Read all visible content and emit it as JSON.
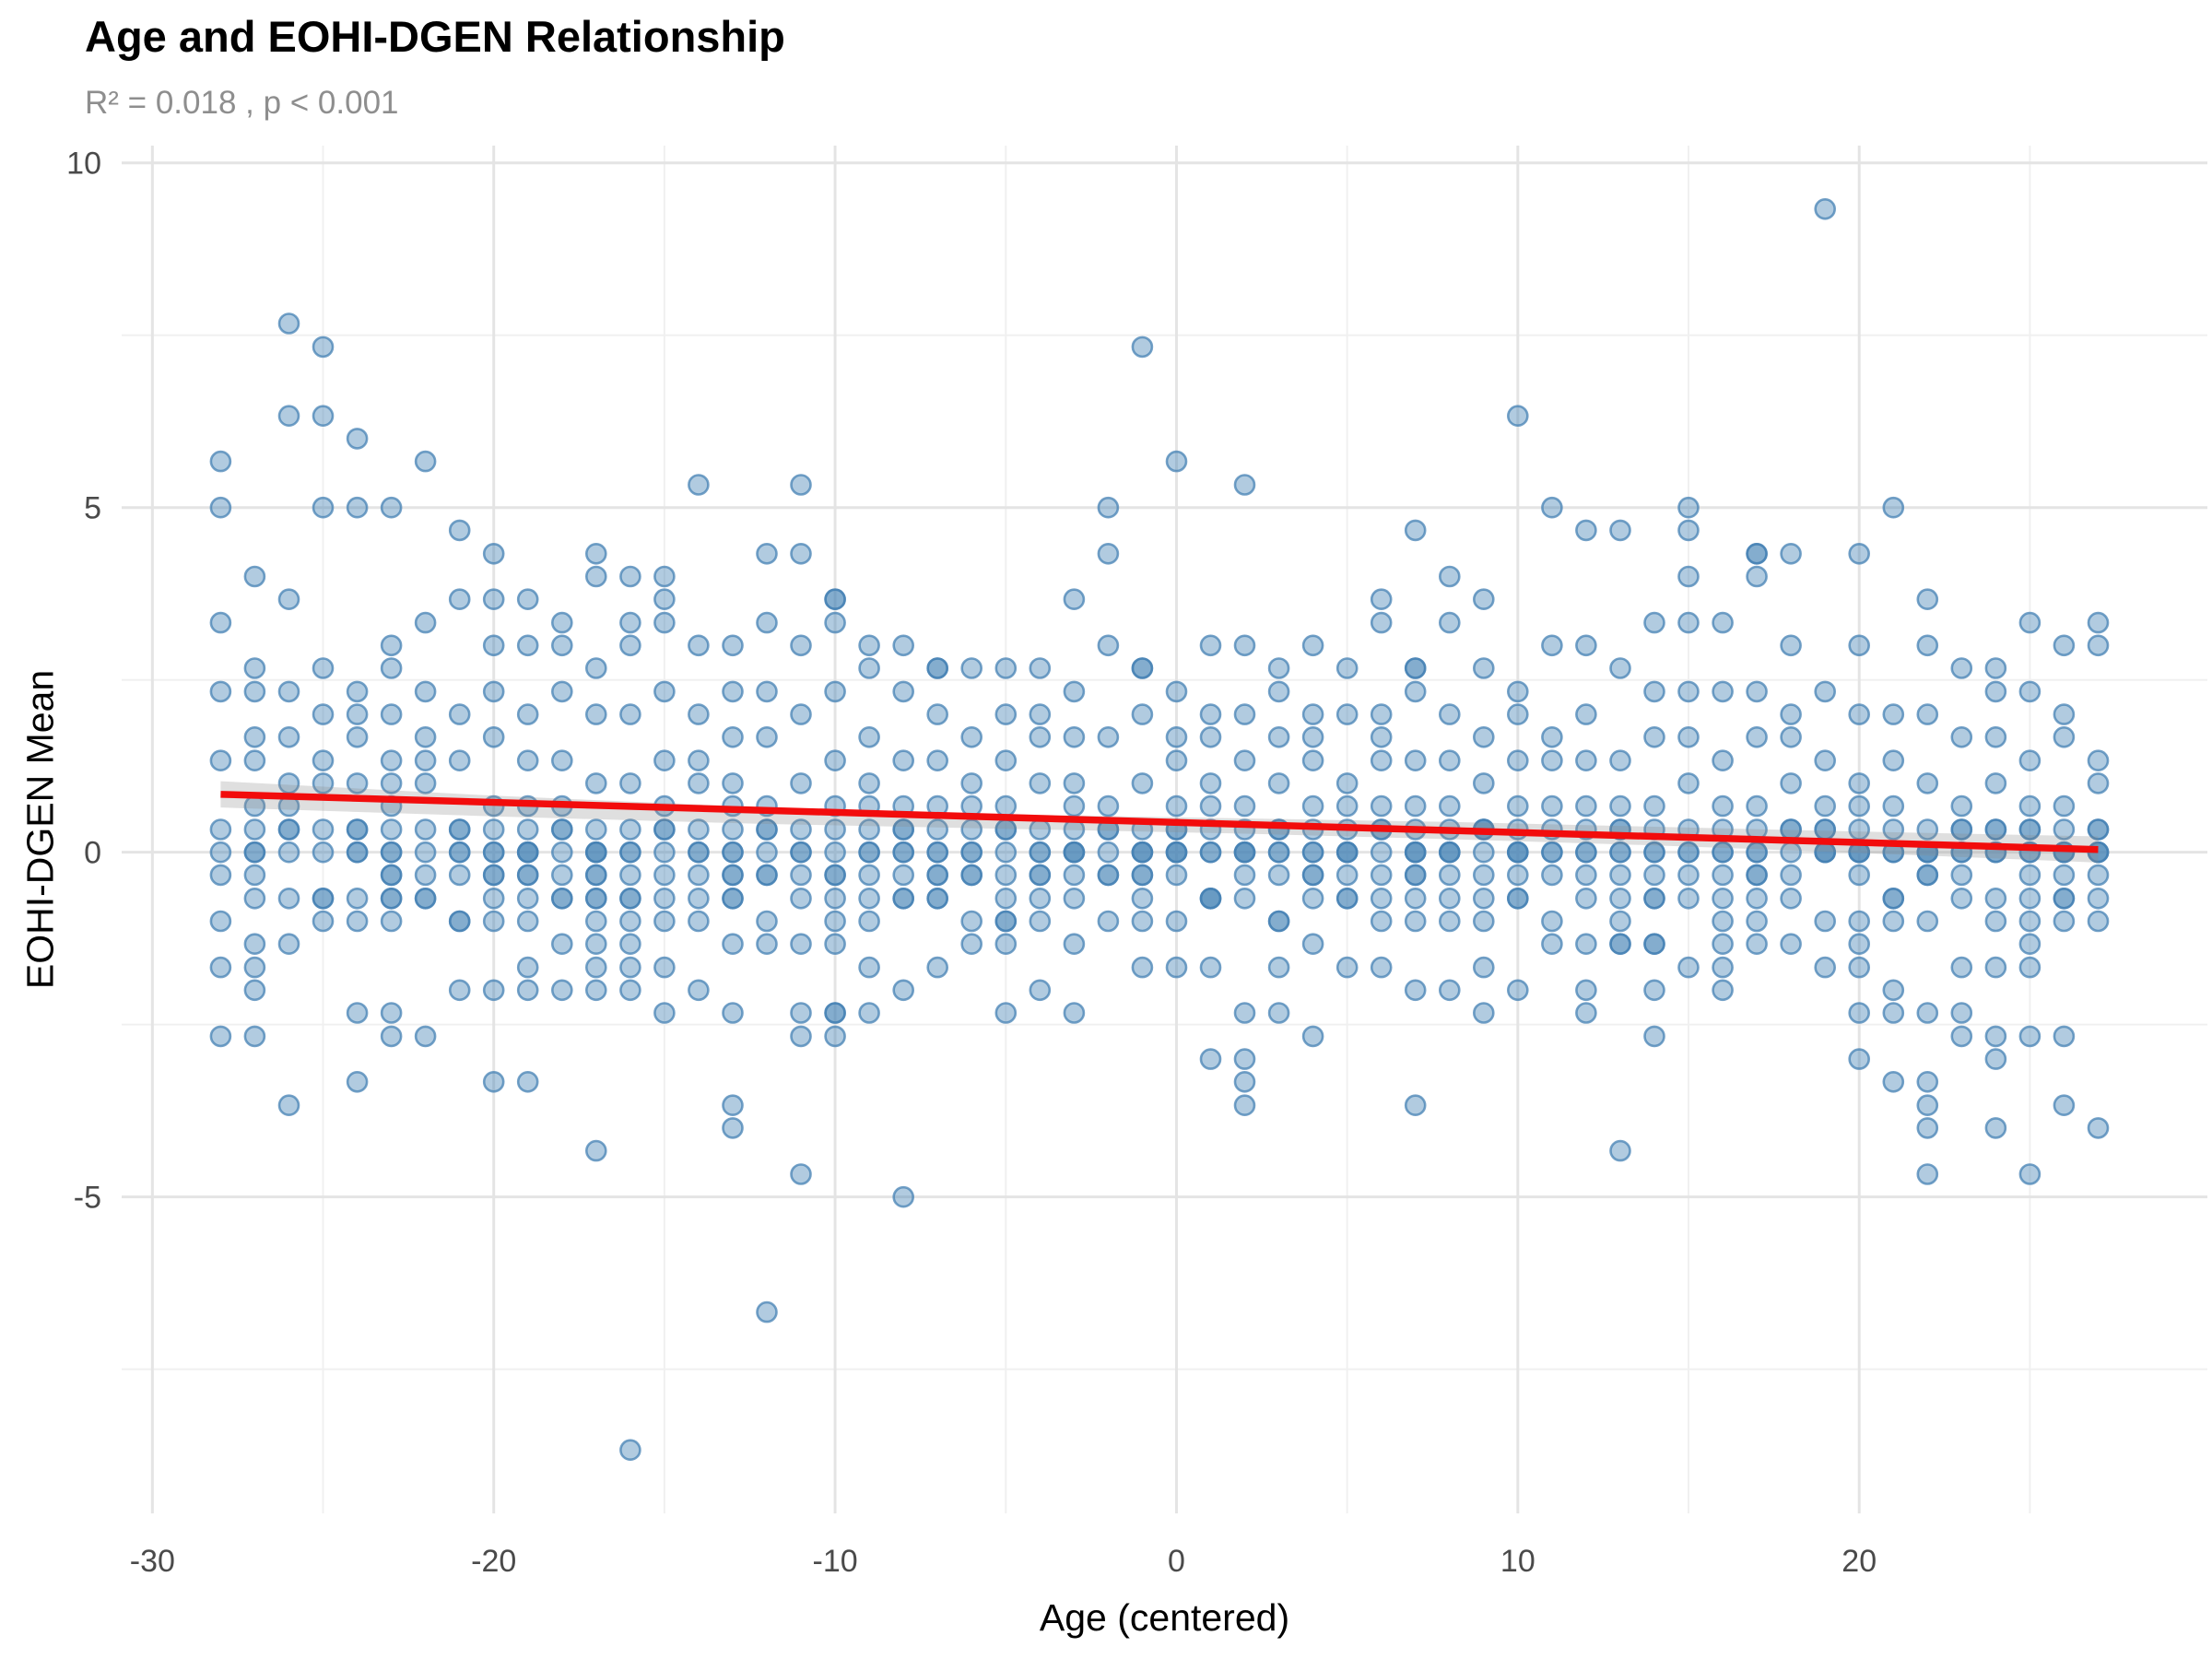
{
  "header": {
    "title": "Age and EOHI-DGEN Relationship",
    "subtitle": "R² = 0.018 , p < 0.001"
  },
  "chart_data": {
    "type": "scatter",
    "title": "Age and EOHI-DGEN Relationship",
    "subtitle": "R² = 0.018 , p < 0.001",
    "xlabel": "Age (centered)",
    "ylabel": "EOHI-DGEN Mean",
    "x_ticks": [
      -30,
      -20,
      -10,
      0,
      10,
      20
    ],
    "x_minor_ticks": [
      -25,
      -15,
      -5,
      5,
      15,
      25
    ],
    "y_ticks": [
      10,
      5,
      0,
      -5
    ],
    "y_minor_ticks": [
      7.5,
      2.5,
      -2.5,
      -7.5
    ],
    "xlim": [
      -30.9,
      30.2
    ],
    "ylim": [
      -9.59,
      10.25
    ],
    "grid": "on",
    "legend": "none",
    "point_color": "#4682b4",
    "point_opacity": 0.42,
    "point_stroke_opacity": 0.75,
    "grid_major_color": "#e4e4e4",
    "grid_minor_color": "#f0f0f0",
    "regression_line": {
      "color": "#f20c0c",
      "x1": -28,
      "y1": 0.84,
      "x2": 27,
      "y2": 0.04
    },
    "confidence_band": {
      "color": "#8a8a8a",
      "opacity": 0.27,
      "upper": [
        [
          -28,
          1.03
        ],
        [
          -20,
          0.82
        ],
        [
          -12,
          0.65
        ],
        [
          -4,
          0.54
        ],
        [
          2,
          0.49
        ],
        [
          8,
          0.44
        ],
        [
          14,
          0.37
        ],
        [
          20,
          0.3
        ],
        [
          27,
          0.23
        ]
      ],
      "lower": [
        [
          -28,
          0.65
        ],
        [
          -20,
          0.52
        ],
        [
          -12,
          0.41
        ],
        [
          -4,
          0.33
        ],
        [
          2,
          0.27
        ],
        [
          8,
          0.19
        ],
        [
          14,
          0.1
        ],
        [
          20,
          -0.01
        ],
        [
          27,
          -0.15
        ]
      ]
    },
    "points_by_age": [
      [
        -28,
        [
          5.67,
          5,
          3.33,
          2.33,
          1.33,
          0.33,
          0,
          -0.33,
          -1,
          -1.67,
          -2.67
        ]
      ],
      [
        -27,
        [
          4,
          2.67,
          2.33,
          1.67,
          1.33,
          0.67,
          0.33,
          0,
          0,
          -0.33,
          -0.67,
          -1.33,
          -1.67,
          -2,
          -2.67
        ]
      ],
      [
        -26,
        [
          7.67,
          6.33,
          3.67,
          2.33,
          1.67,
          1,
          0.67,
          0.33,
          0.33,
          0,
          -0.67,
          -1.33,
          -3.67
        ]
      ],
      [
        -25,
        [
          7.33,
          6.33,
          5,
          2.67,
          2,
          1.33,
          1,
          0.33,
          0,
          -0.67,
          -0.67,
          -1
        ]
      ],
      [
        -24,
        [
          6,
          5,
          2.33,
          2,
          1.67,
          1,
          0.33,
          0.33,
          0,
          0,
          -0.67,
          -1,
          -2.33,
          -3.33
        ]
      ],
      [
        -23,
        [
          5,
          3,
          2.67,
          2,
          1.33,
          1,
          0.67,
          0.33,
          0,
          0,
          -0.33,
          -0.33,
          -0.67,
          -0.67,
          -1,
          -2.33,
          -2.67
        ]
      ],
      [
        -22,
        [
          5.67,
          3.33,
          2.33,
          1.67,
          1.33,
          1,
          0.33,
          0,
          -0.33,
          -0.67,
          -0.67,
          -2.67
        ]
      ],
      [
        -21,
        [
          4.67,
          3.67,
          2,
          1.33,
          0.33,
          0.33,
          0,
          0,
          -0.33,
          -1,
          -1,
          -2
        ]
      ],
      [
        -20,
        [
          4.33,
          3.67,
          3,
          2.33,
          1.67,
          0.67,
          0.33,
          0,
          0,
          -0.33,
          -0.33,
          -0.67,
          -1,
          -2,
          -3.33
        ]
      ],
      [
        -19,
        [
          3.67,
          3,
          2,
          1.33,
          0.67,
          0.33,
          0,
          0,
          0,
          -0.33,
          -0.33,
          -0.67,
          -1,
          -1.67,
          -2,
          -3.33
        ]
      ],
      [
        -18,
        [
          3.33,
          3,
          2.33,
          1.33,
          0.67,
          0.33,
          0.33,
          0,
          -0.33,
          -0.67,
          -0.67,
          -1.33,
          -2
        ]
      ],
      [
        -17,
        [
          4.33,
          4,
          2.67,
          2,
          1,
          0.33,
          0,
          0,
          0,
          -0.33,
          -0.33,
          -0.67,
          -0.67,
          -1,
          -1.33,
          -1.67,
          -2,
          -4.33
        ]
      ],
      [
        -16,
        [
          4,
          3.33,
          3,
          2,
          1,
          0.33,
          0,
          0,
          -0.33,
          -0.67,
          -0.67,
          -1,
          -1.33,
          -1.67,
          -2,
          -8.67
        ]
      ],
      [
        -15,
        [
          4,
          3.67,
          3.33,
          2.33,
          1.33,
          0.67,
          0.33,
          0.33,
          0,
          -0.33,
          -0.67,
          -1,
          -1.67,
          -2.33
        ]
      ],
      [
        -14,
        [
          5.33,
          3,
          2,
          1.33,
          1,
          0.33,
          0,
          0,
          -0.33,
          -0.67,
          -1,
          -2
        ]
      ],
      [
        -13,
        [
          3,
          2.33,
          1.67,
          1,
          0.67,
          0.33,
          0,
          0,
          -0.33,
          -0.33,
          -0.67,
          -0.67,
          -1.33,
          -2.33,
          -3.67,
          -4
        ]
      ],
      [
        -12,
        [
          4.33,
          3.33,
          2.33,
          1.67,
          0.67,
          0.33,
          0.33,
          0,
          -0.33,
          -0.33,
          -1,
          -1.33,
          -6.67
        ]
      ],
      [
        -11,
        [
          5.33,
          4.33,
          3,
          2,
          1,
          0.33,
          0,
          0,
          -0.33,
          -0.67,
          -1.33,
          -2.33,
          -2.67,
          -4.67
        ]
      ],
      [
        -10,
        [
          3.67,
          3.67,
          3.33,
          2.33,
          1.33,
          0.67,
          0.33,
          0,
          -0.33,
          -0.33,
          -0.67,
          -1,
          -1.33,
          -2.33,
          -2.33,
          -2.67
        ]
      ],
      [
        -9,
        [
          3,
          2.67,
          1.67,
          1,
          0.67,
          0.33,
          0,
          0,
          -0.33,
          -0.67,
          -1,
          -1.67,
          -2.33
        ]
      ],
      [
        -8,
        [
          3,
          2.33,
          1.33,
          0.67,
          0.33,
          0.33,
          0,
          0,
          -0.33,
          -0.67,
          -0.67,
          -2,
          -5
        ]
      ],
      [
        -7,
        [
          2.67,
          2.67,
          2,
          1.33,
          0.67,
          0.33,
          0,
          0,
          -0.33,
          -0.33,
          -0.67,
          -0.67,
          -1.67
        ]
      ],
      [
        -6,
        [
          2.67,
          1.67,
          1,
          0.67,
          0.33,
          0,
          0,
          -0.33,
          -0.33,
          -1,
          -1.33
        ]
      ],
      [
        -5,
        [
          2.67,
          2,
          1.33,
          0.67,
          0.33,
          0.33,
          0,
          -0.33,
          -0.67,
          -1,
          -1,
          -1.33,
          -2.33
        ]
      ],
      [
        -4,
        [
          2.67,
          2,
          1.67,
          1,
          0.33,
          0,
          0,
          -0.33,
          -0.33,
          -0.67,
          -1,
          -2
        ]
      ],
      [
        -3,
        [
          3.67,
          2.33,
          1.67,
          1,
          0.67,
          0.33,
          0,
          0,
          0,
          -0.33,
          -0.67,
          -1.33,
          -2.33
        ]
      ],
      [
        -2,
        [
          5,
          4.33,
          3,
          1.67,
          0.67,
          0.33,
          0.33,
          0,
          -0.33,
          -0.33,
          -1
        ]
      ],
      [
        -1,
        [
          7.33,
          2.67,
          2.67,
          2,
          1,
          0.33,
          0,
          0,
          0,
          -0.33,
          -0.33,
          -0.67,
          -1,
          -1.67
        ]
      ],
      [
        0,
        [
          5.67,
          2.33,
          1.67,
          1.33,
          0.67,
          0.33,
          0.33,
          0,
          0,
          0,
          -0.33,
          -1,
          -1.67
        ]
      ],
      [
        1,
        [
          3,
          2,
          1.67,
          1,
          0.67,
          0.33,
          0,
          0,
          -0.67,
          -0.67,
          -0.67,
          -1.67,
          -3
        ]
      ],
      [
        2,
        [
          5.33,
          3,
          2,
          1.33,
          0.67,
          0.33,
          0,
          0,
          0,
          -0.33,
          -0.67,
          -2.33,
          -3,
          -3.33,
          -3.67
        ]
      ],
      [
        3,
        [
          2.67,
          2.33,
          1.67,
          1,
          0.33,
          0.33,
          0,
          0,
          -0.33,
          -1,
          -1,
          -1.67,
          -2.33
        ]
      ],
      [
        4,
        [
          3,
          2,
          1.67,
          1.33,
          0.67,
          0.33,
          0,
          0,
          -0.33,
          -0.33,
          -0.67,
          -1.33,
          -2.67
        ]
      ],
      [
        5,
        [
          2.67,
          2,
          1,
          0.67,
          0.33,
          0,
          0,
          0,
          -0.33,
          -0.67,
          -0.67,
          -1.67
        ]
      ],
      [
        6,
        [
          3.67,
          3.33,
          2,
          1.67,
          1.33,
          0.67,
          0.33,
          0.33,
          0,
          -0.33,
          -0.67,
          -1,
          -1.67
        ]
      ],
      [
        7,
        [
          4.67,
          2.67,
          2.67,
          2.33,
          1.33,
          0.67,
          0.33,
          0,
          0,
          0,
          -0.33,
          -0.33,
          -0.67,
          -1,
          -2,
          -3.67
        ]
      ],
      [
        8,
        [
          4,
          3.33,
          2,
          1.33,
          0.67,
          0.33,
          0,
          0,
          0,
          -0.33,
          -0.67,
          -1,
          -2
        ]
      ],
      [
        9,
        [
          3.67,
          2.67,
          1.67,
          1,
          0.33,
          0.33,
          0.33,
          0,
          -0.33,
          -0.67,
          -1,
          -1.67,
          -2.33
        ]
      ],
      [
        10,
        [
          6.33,
          2.33,
          2,
          1.33,
          0.67,
          0.33,
          0,
          0,
          0,
          -0.33,
          -0.67,
          -0.67,
          -2
        ]
      ],
      [
        11,
        [
          5,
          3,
          1.67,
          1.33,
          0.67,
          0.33,
          0,
          0,
          -0.33,
          -1,
          -1.33
        ]
      ],
      [
        12,
        [
          4.67,
          3,
          2,
          1.33,
          0.67,
          0.33,
          0,
          0,
          -0.33,
          -0.67,
          -1.33,
          -2,
          -2.33
        ]
      ],
      [
        13,
        [
          4.67,
          2.67,
          1.33,
          0.67,
          0.33,
          0.33,
          0,
          0,
          -0.33,
          -0.67,
          -1,
          -1.33,
          -1.33,
          -4.33
        ]
      ],
      [
        14,
        [
          3.33,
          2.33,
          1.67,
          0.67,
          0.33,
          0,
          0,
          -0.33,
          -0.67,
          -0.67,
          -1.33,
          -1.33,
          -2,
          -2.67
        ]
      ],
      [
        15,
        [
          5,
          4.67,
          4,
          3.33,
          2.33,
          1.67,
          1,
          0.33,
          0,
          0,
          -0.33,
          -0.67,
          -1.67
        ]
      ],
      [
        16,
        [
          3.33,
          2.33,
          1.33,
          0.67,
          0.33,
          0,
          0,
          -0.33,
          -0.67,
          -1,
          -1.33,
          -1.67,
          -2
        ]
      ],
      [
        17,
        [
          4.33,
          4.33,
          4,
          2.33,
          1.67,
          0.67,
          0.33,
          0,
          0,
          -0.33,
          -0.33,
          -0.67,
          -1,
          -1.33
        ]
      ],
      [
        18,
        [
          4.33,
          3,
          2,
          1.67,
          1,
          0.33,
          0.33,
          0,
          -0.33,
          -0.67,
          -1.33
        ]
      ],
      [
        19,
        [
          9.33,
          2.33,
          1.33,
          0.67,
          0.33,
          0.33,
          0,
          0,
          0,
          -1,
          -1.67
        ]
      ],
      [
        20,
        [
          4.33,
          3,
          2,
          1,
          0.67,
          0.33,
          0,
          0,
          0,
          -0.33,
          -1,
          -1.33,
          -1.67,
          -2.33,
          -3
        ]
      ],
      [
        21,
        [
          5,
          2,
          1.33,
          0.67,
          0.33,
          0,
          0,
          -0.67,
          -0.67,
          -1,
          -2,
          -2.33,
          -3.33
        ]
      ],
      [
        22,
        [
          3.67,
          3,
          2,
          1,
          0.33,
          0,
          0,
          0,
          -0.33,
          -0.33,
          -1,
          -2.33,
          -3.33,
          -3.67,
          -4,
          -4.67
        ]
      ],
      [
        23,
        [
          2.67,
          1.67,
          0.67,
          0.33,
          0.33,
          0,
          0,
          -0.33,
          -0.67,
          -1.67,
          -2.33,
          -2.67
        ]
      ],
      [
        24,
        [
          2.67,
          2.33,
          1.67,
          1,
          0.33,
          0.33,
          0,
          0,
          -0.67,
          -1,
          -1.67,
          -2.67,
          -3,
          -4
        ]
      ],
      [
        25,
        [
          3.33,
          2.33,
          1.33,
          0.67,
          0.33,
          0.33,
          0,
          0,
          -0.33,
          -0.67,
          -1,
          -1.33,
          -1.67,
          -2.67,
          -4.67
        ]
      ],
      [
        26,
        [
          3,
          2,
          1.67,
          0.67,
          0.33,
          0,
          0,
          0,
          -0.33,
          -0.67,
          -0.67,
          -1,
          -2.67,
          -3.67
        ]
      ],
      [
        27,
        [
          3.33,
          3,
          1.33,
          1,
          0.33,
          0.33,
          0,
          0,
          0,
          -0.33,
          -0.67,
          -1,
          -4
        ]
      ]
    ]
  }
}
